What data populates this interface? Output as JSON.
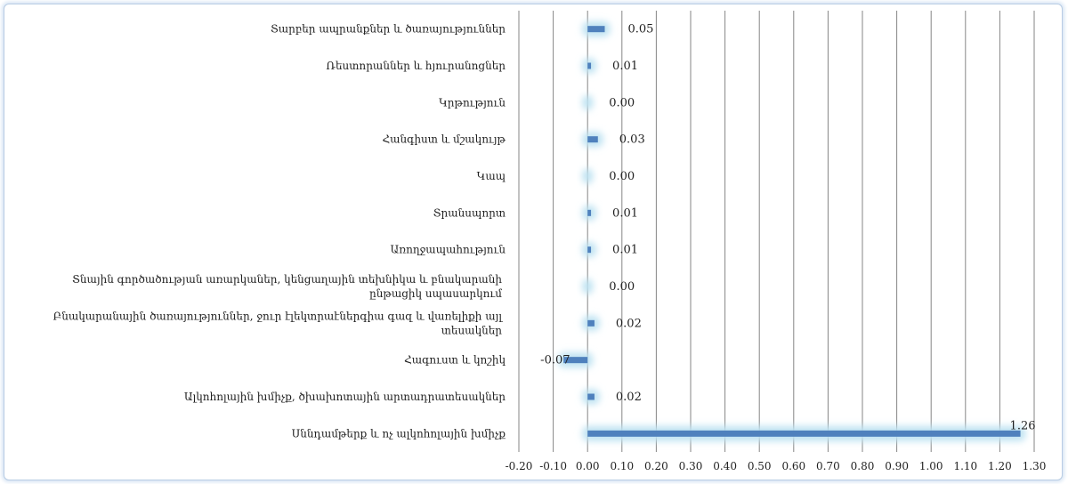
{
  "chart_data": {
    "type": "bar",
    "orientation": "horizontal",
    "categories": [
      "Տարբեր ապրանքներ և ծառայություններ",
      "Ռեստորաններ և հյուրանոցներ",
      "Կրթություն",
      "Հանգիստ և մշակույթ",
      "Կապ",
      "Տրանսպորտ",
      "Առողջապահություն",
      [
        "Տնային գործածության առարկաներ, կենցաղային տեխնիկա և բնակարանի",
        "ընթացիկ սպասարկում"
      ],
      [
        "Բնակարանային ծառայություններ, ջուր էլեկտրաէներգիա գազ և վառելիքի այլ",
        "տեսակներ"
      ],
      "Հագուստ և կոշիկ",
      "Ալկոհոլային խմիչք, ծխախոտային արտադրատեսակներ",
      "Սննդամթերք և ոչ ալկոհոլային խմիչք"
    ],
    "values": [
      0.05,
      0.01,
      0.0,
      0.03,
      0.0,
      0.01,
      0.01,
      0.0,
      0.02,
      -0.07,
      0.02,
      1.26
    ],
    "data_labels": [
      "0.05",
      "0.01",
      "0.00",
      "0.03",
      "0.00",
      "0.01",
      "0.01",
      "0.00",
      "0.02",
      "-0.07",
      "0.02",
      "1.26"
    ],
    "xlim": [
      -0.2,
      1.3
    ],
    "ticks": [
      "-0.20",
      "-0.10",
      "0.00",
      "0.10",
      "0.20",
      "0.30",
      "0.40",
      "0.50",
      "0.60",
      "0.70",
      "0.80",
      "0.90",
      "1.00",
      "1.10",
      "1.20",
      "1.30"
    ],
    "tick_values": [
      -0.2,
      -0.1,
      0.0,
      0.1,
      0.2,
      0.3,
      0.4,
      0.5,
      0.6,
      0.7,
      0.8,
      0.9,
      1.0,
      1.1,
      1.2,
      1.3
    ],
    "grid": "vertical",
    "colors": {
      "bar": "#4f81bd",
      "glow": "#bfe3f2",
      "grid": "#868686",
      "frame": "#b8cce4"
    }
  }
}
